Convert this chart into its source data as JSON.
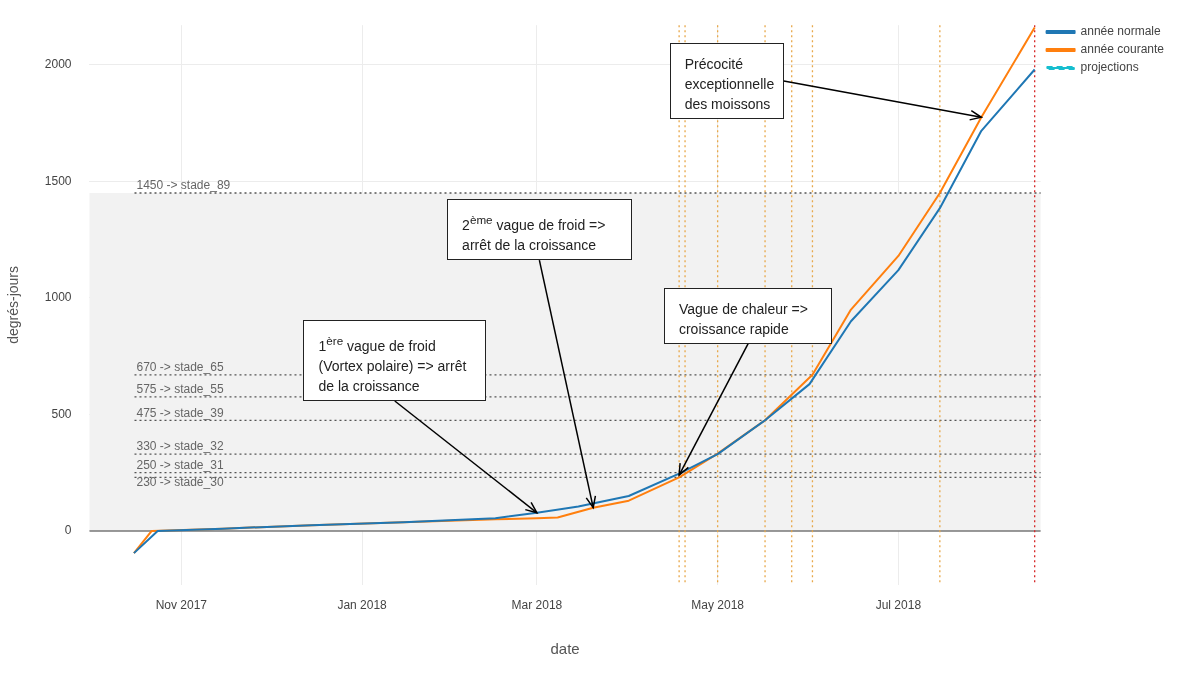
{
  "chart_data": {
    "type": "line",
    "xlabel": "date",
    "ylabel": "degrés-jours",
    "xlim": [
      "2017-10-01",
      "2018-08-18"
    ],
    "ylim": [
      -230,
      2170
    ],
    "xticks": [
      {
        "value": "2017-11-01",
        "label": "Nov 2017"
      },
      {
        "value": "2018-01-01",
        "label": "Jan 2018"
      },
      {
        "value": "2018-03-01",
        "label": "Mar 2018"
      },
      {
        "value": "2018-05-01",
        "label": "May 2018"
      },
      {
        "value": "2018-07-01",
        "label": "Jul 2018"
      }
    ],
    "yticks": [
      0,
      500,
      1000,
      1500,
      2000
    ],
    "grid": true,
    "legend": "top right",
    "marker": "none",
    "series": [
      {
        "name": "année normale",
        "color": "#1f77b4",
        "x": [
          "2017-10-16",
          "2017-10-24",
          "2017-11-15",
          "2017-12-15",
          "2018-01-15",
          "2018-02-15",
          "2018-03-01",
          "2018-03-15",
          "2018-04-01",
          "2018-04-18",
          "2018-05-01",
          "2018-05-17",
          "2018-06-01",
          "2018-06-15",
          "2018-07-01",
          "2018-07-15",
          "2018-07-29",
          "2018-08-16"
        ],
        "values": [
          -95,
          0,
          10,
          25,
          37,
          55,
          78,
          105,
          150,
          246,
          330,
          475,
          630,
          900,
          1119,
          1385,
          1717,
          1980
        ]
      },
      {
        "name": "année courante",
        "color": "#ff7f0e",
        "x": [
          "2017-10-16",
          "2017-10-22",
          "2017-11-15",
          "2017-12-15",
          "2018-01-15",
          "2018-02-15",
          "2018-03-01",
          "2018-03-08",
          "2018-03-20",
          "2018-04-01",
          "2018-04-18",
          "2018-05-01",
          "2018-05-17",
          "2018-06-02",
          "2018-06-15",
          "2018-07-01",
          "2018-07-15",
          "2018-07-29",
          "2018-08-16"
        ],
        "values": [
          -95,
          0,
          10,
          25,
          37,
          50,
          55,
          58,
          100,
          130,
          230,
          332,
          475,
          670,
          950,
          1180,
          1450,
          1775,
          2160
        ]
      },
      {
        "name": "projections",
        "color": "#17becf",
        "line_style": "dashed"
      }
    ],
    "bands": [
      {
        "axis": "y",
        "from": 0,
        "to": 1450,
        "color": "#f2f2f2"
      }
    ],
    "ref_lines": [
      {
        "axis": "y",
        "value": 1450,
        "label": "1450 -> stade_89",
        "color": "#555555",
        "line_style": "dotted"
      },
      {
        "axis": "y",
        "value": 670,
        "label": "670 -> stade_65",
        "color": "#555555",
        "line_style": "dotted"
      },
      {
        "axis": "y",
        "value": 575,
        "label": "575 -> stade_55",
        "color": "#555555",
        "line_style": "dotted"
      },
      {
        "axis": "y",
        "value": 475,
        "label": "475 -> stade_39",
        "color": "#555555",
        "line_style": "dotted"
      },
      {
        "axis": "y",
        "value": 330,
        "label": "330 -> stade_32",
        "color": "#555555",
        "line_style": "dotted"
      },
      {
        "axis": "y",
        "value": 250,
        "label": "250 -> stade_31",
        "color": "#555555",
        "line_style": "dotted"
      },
      {
        "axis": "y",
        "value": 230,
        "label": "230 -> stade_30",
        "color": "#555555",
        "line_style": "dotted"
      },
      {
        "axis": "x",
        "value": "2018-04-18",
        "color": "#e8a84a",
        "line_style": "dotted"
      },
      {
        "axis": "x",
        "value": "2018-04-20",
        "color": "#e8a84a",
        "line_style": "dotted"
      },
      {
        "axis": "x",
        "value": "2018-05-01",
        "color": "#e8a84a",
        "line_style": "dotted"
      },
      {
        "axis": "x",
        "value": "2018-05-17",
        "color": "#e8a84a",
        "line_style": "dotted"
      },
      {
        "axis": "x",
        "value": "2018-05-26",
        "color": "#e8a84a",
        "line_style": "dotted"
      },
      {
        "axis": "x",
        "value": "2018-06-02",
        "color": "#e8a84a",
        "line_style": "dotted"
      },
      {
        "axis": "x",
        "value": "2018-07-15",
        "color": "#e8a84a",
        "line_style": "dotted"
      },
      {
        "axis": "x",
        "value": "2018-08-16",
        "color": "#d62728",
        "line_style": "dotted"
      }
    ],
    "annotations": [
      {
        "text": "1$^{ère}$ vague de froid (Vortex polaire) => arrêt de la croissance",
        "x": "2018-03-01",
        "y": 78
      },
      {
        "text": "2$^{ème}$ vague de froid => arrêt de la croissance",
        "x": "2018-03-20",
        "y": 100
      },
      {
        "text": "Vague de chaleur => croissance rapide",
        "x": "2018-04-18",
        "y": 240
      },
      {
        "text": "Précocité exceptionnelle des moissons",
        "x": "2018-07-29",
        "y": 1775
      }
    ]
  }
}
